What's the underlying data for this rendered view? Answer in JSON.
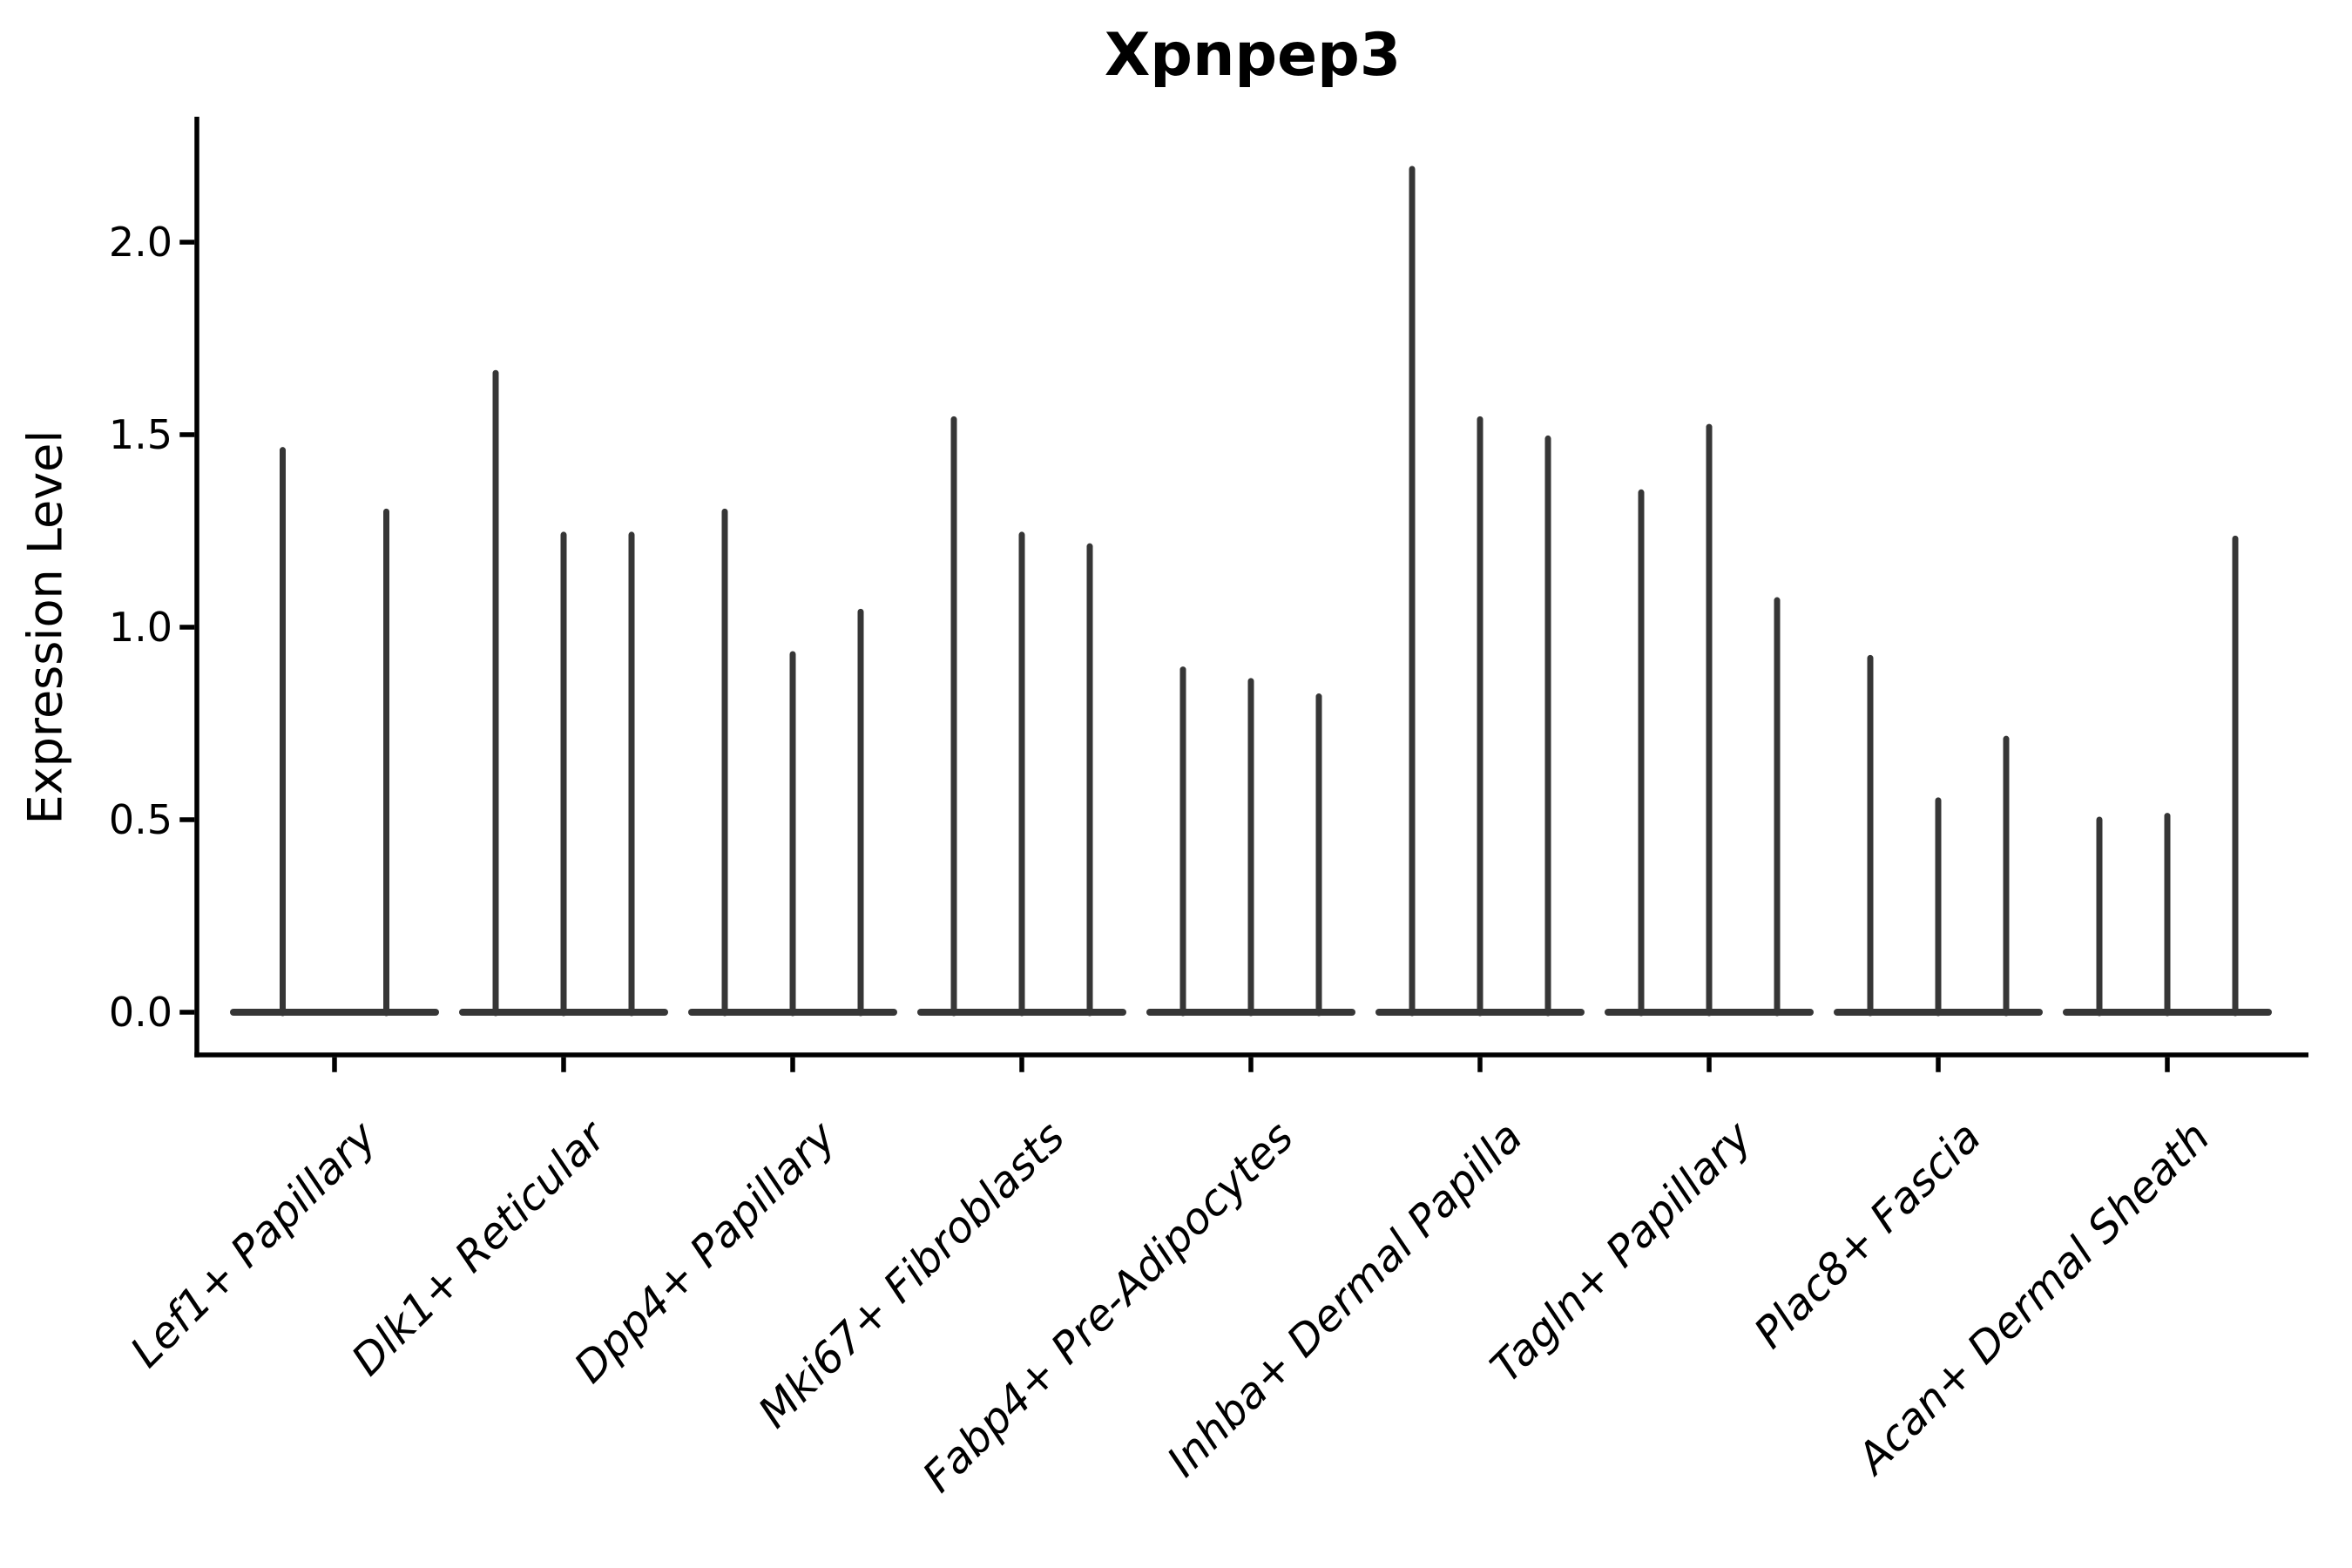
{
  "chart_data": {
    "type": "violin",
    "title": "Xpnpep3",
    "ylabel": "Expression Level",
    "xlabel": "",
    "yticks": [
      "2.0",
      "1.5",
      "1.0",
      "0.5",
      "0.0"
    ],
    "ytick_values": [
      2.0,
      1.5,
      1.0,
      0.5,
      0.0
    ],
    "ylim": [
      -0.11,
      2.33
    ],
    "grid": false,
    "legend_position": "none",
    "x_tick_rotation": 45,
    "categories": [
      "Lef1+ Papillary",
      "Dlk1+ Reticular",
      "Dpp4+ Papillary",
      "Mki67+ Fibroblasts",
      "Fabp4+ Pre-Adipocytes",
      "Inhba+ Dermal Papilla",
      "Tagln+ Papillary",
      "Plac8+ Fascia",
      "Acan+ Dermal Sheath"
    ],
    "groups": [
      {
        "label": "Lef1+ Papillary",
        "spike_heights": [
          1.46,
          1.3
        ]
      },
      {
        "label": "Dlk1+ Reticular",
        "spike_heights": [
          1.66,
          1.24,
          1.24
        ]
      },
      {
        "label": "Dpp4+ Papillary",
        "spike_heights": [
          1.3,
          0.93,
          1.04
        ]
      },
      {
        "label": "Mki67+ Fibroblasts",
        "spike_heights": [
          1.54,
          1.24,
          1.21
        ]
      },
      {
        "label": "Fabp4+ Pre-Adipocytes",
        "spike_heights": [
          0.89,
          0.86,
          0.82
        ]
      },
      {
        "label": "Inhba+ Dermal Papilla",
        "spike_heights": [
          2.19,
          1.54,
          1.49
        ]
      },
      {
        "label": "Tagln+ Papillary",
        "spike_heights": [
          1.35,
          1.52,
          1.07
        ]
      },
      {
        "label": "Plac8+ Fascia",
        "spike_heights": [
          0.92,
          0.55,
          0.71
        ]
      },
      {
        "label": "Acan+ Dermal Sheath",
        "spike_heights": [
          0.5,
          0.51,
          1.23
        ]
      }
    ],
    "colors": {
      "violin": "#363636",
      "axis": "#000000",
      "text": "#000000",
      "background": "#ffffff"
    }
  }
}
